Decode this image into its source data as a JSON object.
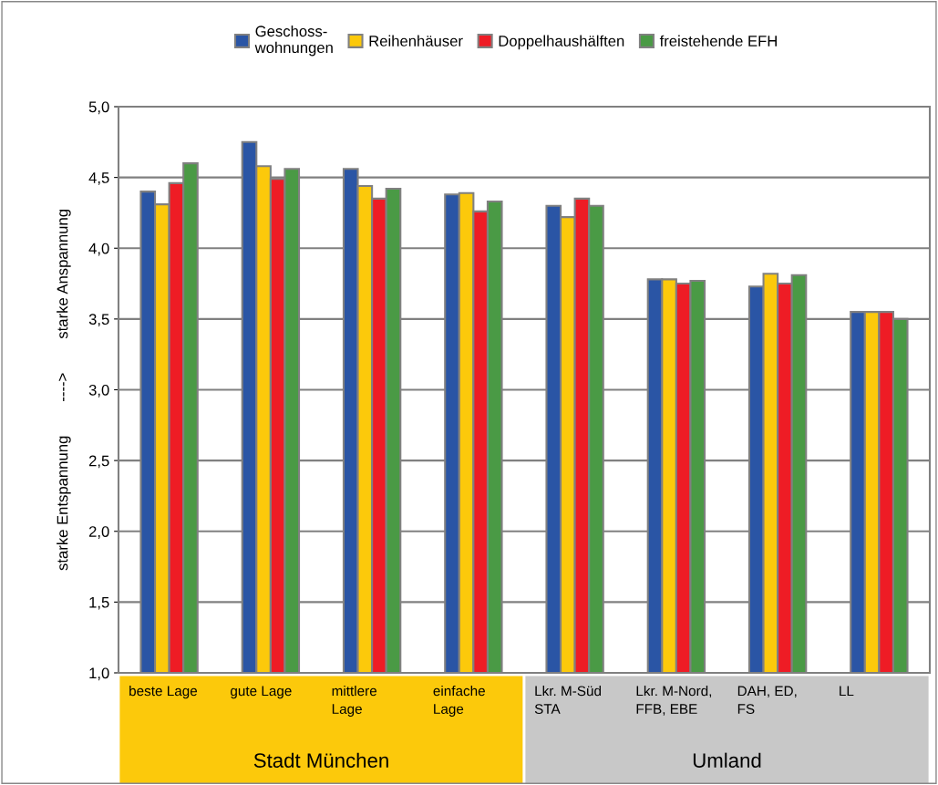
{
  "chart_data": {
    "type": "bar",
    "ylabel": "starke Entspannung        ---->        starke Anspannung",
    "categories": [
      "beste Lage",
      "gute Lage",
      "mittlere\nLage",
      "einfache\nLage",
      "Lkr. M-Süd\nSTA",
      "Lkr. M-Nord,\nFFB, EBE",
      "DAH, ED,\nFS",
      "LL"
    ],
    "series": [
      {
        "name": "Geschoss-\nwohnungen",
        "color": "#2a55a5",
        "values": [
          4.4,
          4.75,
          4.56,
          4.38,
          4.3,
          3.78,
          3.73,
          3.55
        ]
      },
      {
        "name": "Reihenhäuser",
        "color": "#fcc90b",
        "values": [
          4.31,
          4.58,
          4.44,
          4.39,
          4.22,
          3.78,
          3.82,
          3.55
        ]
      },
      {
        "name": "Doppelhaushälften",
        "color": "#ee1c25",
        "values": [
          4.46,
          4.49,
          4.35,
          4.26,
          4.35,
          3.75,
          3.75,
          3.55
        ]
      },
      {
        "name": "freistehende EFH",
        "color": "#4a9a45",
        "values": [
          4.6,
          4.56,
          4.42,
          4.33,
          4.3,
          3.77,
          3.81,
          3.5
        ]
      }
    ],
    "ylim": [
      1.0,
      5.0
    ],
    "yticks": [
      {
        "value": 1.0,
        "label": "1,0"
      },
      {
        "value": 1.5,
        "label": "1,5"
      },
      {
        "value": 2.0,
        "label": "2,0"
      },
      {
        "value": 2.5,
        "label": "2,5"
      },
      {
        "value": 3.0,
        "label": "3,0"
      },
      {
        "value": 3.5,
        "label": "3,5"
      },
      {
        "value": 4.0,
        "label": "4,0"
      },
      {
        "value": 4.5,
        "label": "4,5"
      },
      {
        "value": 5.0,
        "label": "5,0"
      }
    ],
    "grid": "y",
    "legend": "top",
    "annotations": [
      "Stadt München",
      "Umland"
    ]
  }
}
